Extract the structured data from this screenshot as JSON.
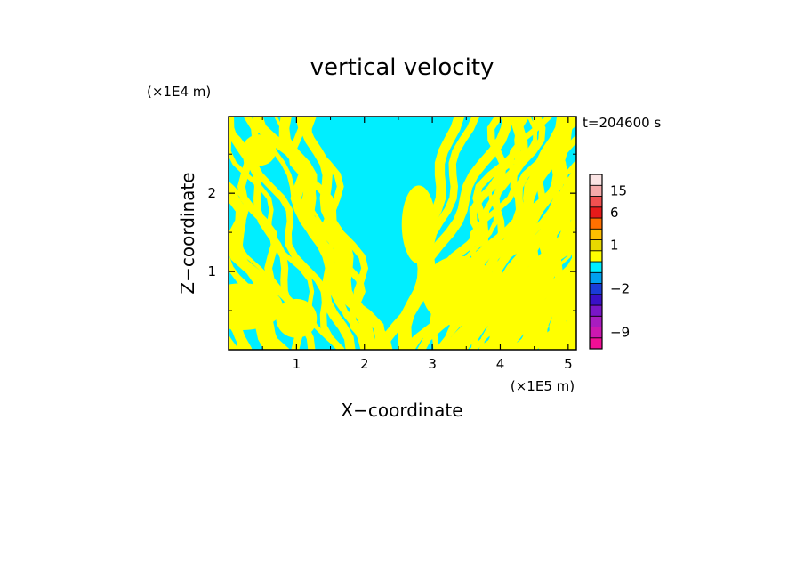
{
  "chart_data": {
    "type": "heatmap",
    "title": "vertical velocity",
    "xlabel": "X−coordinate",
    "ylabel": "Z−coordinate",
    "x_unit": "(×1E5 m)",
    "y_unit": "(×1E4 m)",
    "time_label": "t=204600 s",
    "xlim": [
      0,
      5.12
    ],
    "ylim": [
      0,
      2.98
    ],
    "x_ticks": [
      {
        "value": 1,
        "label": "1"
      },
      {
        "value": 2,
        "label": "2"
      },
      {
        "value": 3,
        "label": "3"
      },
      {
        "value": 4,
        "label": "4"
      },
      {
        "value": 5,
        "label": "5"
      }
    ],
    "y_ticks": [
      {
        "value": 1,
        "label": "1"
      },
      {
        "value": 2,
        "label": "2"
      }
    ],
    "colorbar": {
      "levels": [
        {
          "value": -12,
          "color": "#f20f96"
        },
        {
          "value": -9,
          "color": "#cc18b0"
        },
        {
          "value": -7,
          "color": "#a81cc0"
        },
        {
          "value": -5,
          "color": "#7a16c8"
        },
        {
          "value": -3,
          "color": "#3a10c8"
        },
        {
          "value": -2,
          "color": "#1a3cd8"
        },
        {
          "value": -1,
          "color": "#00a0f0"
        },
        {
          "value": 0,
          "color": "#00eeff"
        },
        {
          "value": 0.5,
          "color": "#ffff00"
        },
        {
          "value": 1,
          "color": "#e8d800"
        },
        {
          "value": 2,
          "color": "#ffc000"
        },
        {
          "value": 4,
          "color": "#ff7000"
        },
        {
          "value": 6,
          "color": "#e61a1a"
        },
        {
          "value": 10,
          "color": "#f05050"
        },
        {
          "value": 15,
          "color": "#f5aaaa"
        },
        {
          "value": 20,
          "color": "#fbe4e4"
        }
      ],
      "tick_labels": [
        {
          "value": 15,
          "label": "15"
        },
        {
          "value": 6,
          "label": "6"
        },
        {
          "value": 1,
          "label": "1"
        },
        {
          "value": -2,
          "label": "−2"
        },
        {
          "value": -9,
          "label": "−9"
        }
      ]
    },
    "field_colors": {
      "updraft": "#ffff00",
      "downdraft": "#00eeff"
    }
  }
}
